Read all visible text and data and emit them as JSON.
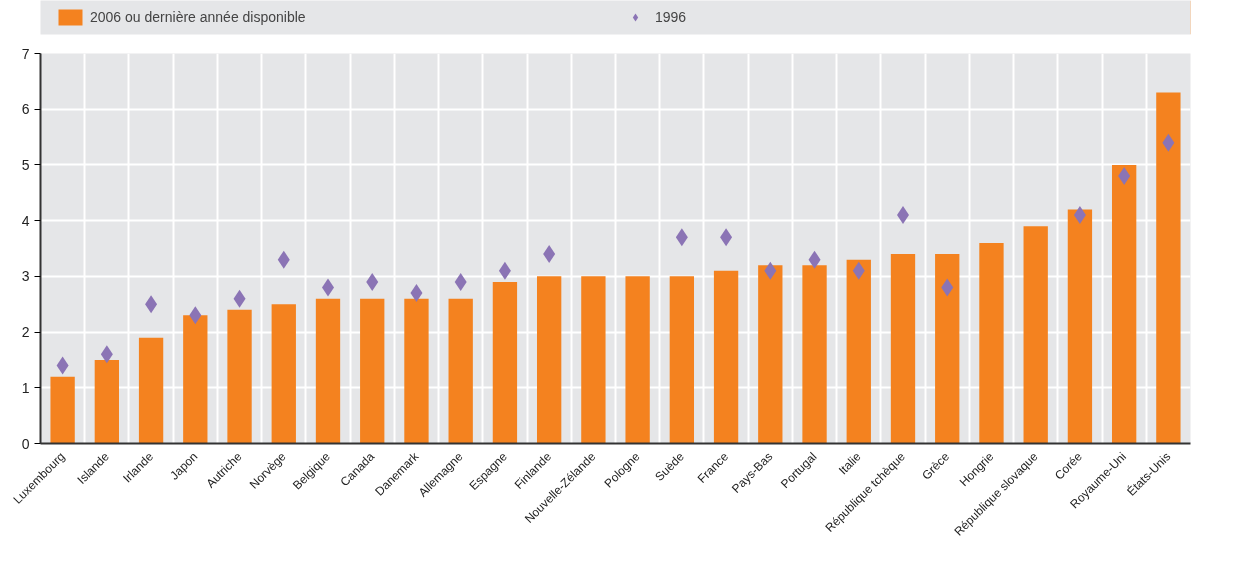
{
  "chart_data": {
    "type": "bar",
    "categories": [
      "Luxembourg",
      "Islande",
      "Irlande",
      "Japon",
      "Autriche",
      "Norvège",
      "Belgique",
      "Canada",
      "Danemark",
      "Allemagne",
      "Espagne",
      "Finlande",
      "Nouvelle-Zélande",
      "Pologne",
      "Suède",
      "France",
      "Pays-Bas",
      "Portugal",
      "Italie",
      "République tchèque",
      "Grèce",
      "Hongrie",
      "République slovaque",
      "Corée",
      "Royaume-Uni",
      "États-Unis"
    ],
    "series": [
      {
        "name": "2006 ou dernière année disponible",
        "color": "#f4821f",
        "values": [
          1.2,
          1.5,
          1.9,
          2.3,
          2.4,
          2.5,
          2.6,
          2.6,
          2.6,
          2.6,
          2.9,
          3.0,
          3.0,
          3.0,
          3.0,
          3.1,
          3.2,
          3.2,
          3.3,
          3.4,
          3.4,
          3.6,
          3.9,
          4.2,
          5.0,
          6.3
        ]
      },
      {
        "name": "1996",
        "type": "scatter",
        "marker": "diamond",
        "color": "#8b74b5",
        "values": [
          1.4,
          1.6,
          2.5,
          2.3,
          2.6,
          3.3,
          2.8,
          2.9,
          2.7,
          2.9,
          3.1,
          3.4,
          null,
          null,
          3.7,
          3.7,
          3.1,
          3.3,
          3.1,
          4.1,
          2.8,
          null,
          null,
          4.1,
          4.8,
          5.4
        ]
      }
    ],
    "ylim": [
      0,
      7
    ],
    "yticks": [
      0,
      1,
      2,
      3,
      4,
      5,
      6,
      7
    ],
    "grid": true,
    "legend": "top"
  }
}
